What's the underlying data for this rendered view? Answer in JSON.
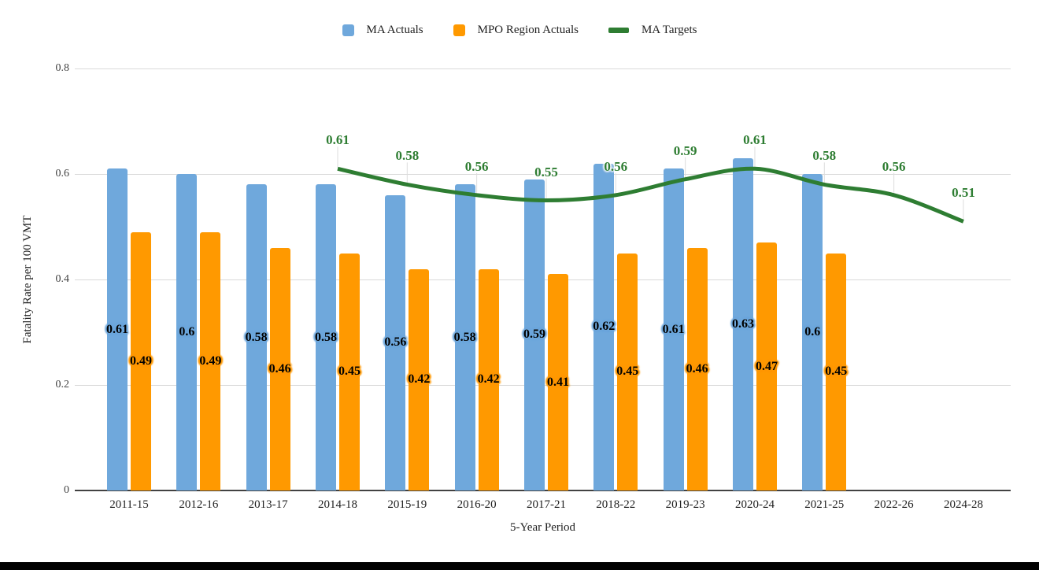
{
  "window": {
    "background": "#ffffff",
    "bottom_bar_color": "#000000"
  },
  "chart_data": {
    "type": "bar",
    "subtype": "grouped-bars-with-target-line",
    "title": "",
    "xlabel": "5-Year Period",
    "ylabel": "Fatality Rate per 100 VMT",
    "ylim": [
      0,
      0.8
    ],
    "yticks": [
      0,
      0.2,
      0.4,
      0.6,
      0.8
    ],
    "grid": "horizontal",
    "grid_color": "#d9d9d9",
    "axis_color": "#424242",
    "legend_position": "top-center",
    "categories": [
      "2011-15",
      "2012-16",
      "2013-17",
      "2014-18",
      "2015-19",
      "2016-20",
      "2017-21",
      "2018-22",
      "2019-23",
      "2020-24",
      "2021-25",
      "2022-26",
      "2024-28"
    ],
    "series": [
      {
        "name": "MA Actuals",
        "type": "bar",
        "color": "#6fa8dc",
        "values": [
          0.61,
          0.6,
          0.58,
          0.58,
          0.56,
          0.58,
          0.59,
          0.62,
          0.61,
          0.63,
          0.6,
          null,
          null
        ]
      },
      {
        "name": "MPO Region Actuals",
        "type": "bar",
        "color": "#ff9900",
        "values": [
          0.49,
          0.49,
          0.46,
          0.45,
          0.42,
          0.42,
          0.41,
          0.45,
          0.46,
          0.47,
          0.45,
          null,
          null
        ]
      },
      {
        "name": "MA Targets",
        "type": "line",
        "color": "#2e7d32",
        "values": [
          null,
          null,
          null,
          0.61,
          0.58,
          0.56,
          0.55,
          0.56,
          0.59,
          0.61,
          0.58,
          0.56,
          0.51
        ]
      }
    ]
  }
}
